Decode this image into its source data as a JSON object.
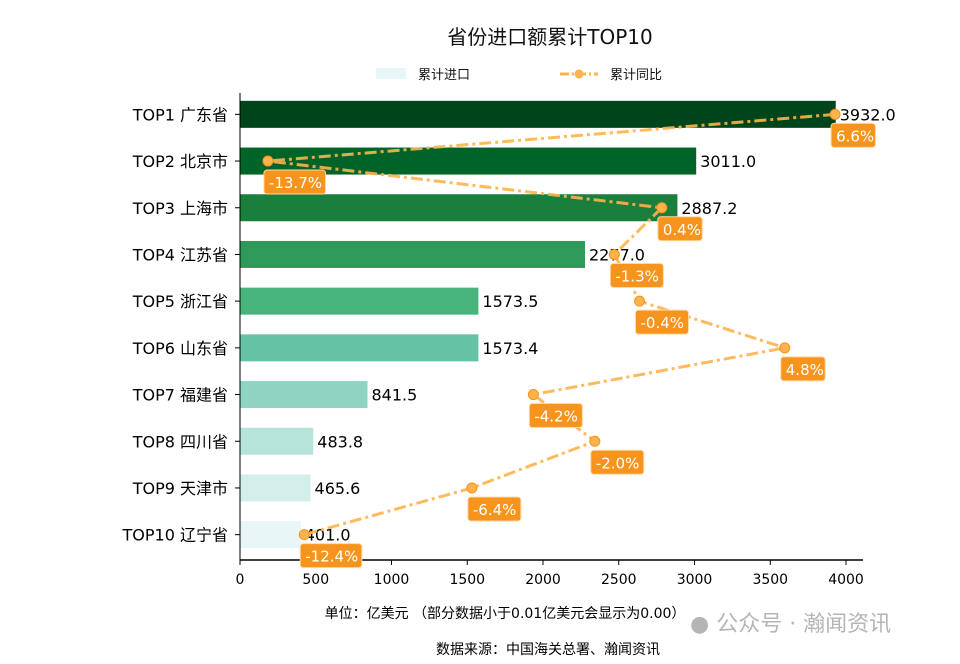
{
  "chart_data": {
    "type": "bar",
    "orientation": "horizontal",
    "title": "省份进口额累计TOP10",
    "categories": [
      "TOP1 广东省",
      "TOP2 北京市",
      "TOP3 上海市",
      "TOP4 江苏省",
      "TOP5 浙江省",
      "TOP6 山东省",
      "TOP7 福建省",
      "TOP8 四川省",
      "TOP9 天津市",
      "TOP10 辽宁省"
    ],
    "series": [
      {
        "name": "累计进口",
        "type": "bar",
        "values": [
          3932.0,
          3011.0,
          2887.2,
          2277.0,
          1573.5,
          1573.4,
          841.5,
          483.8,
          465.6,
          401.0
        ],
        "value_labels": [
          "3932.0",
          "3011.0",
          "2887.2",
          "2277.0",
          "1573.5",
          "1573.4",
          "841.5",
          "483.8",
          "465.6",
          "401.0"
        ]
      },
      {
        "name": "累计同比",
        "type": "line",
        "unit": "%",
        "values": [
          6.6,
          -13.7,
          0.4,
          -1.3,
          -0.4,
          4.8,
          -4.2,
          -2.0,
          -6.4,
          -12.4
        ],
        "value_labels": [
          "6.6%",
          "-13.7%",
          "0.4%",
          "-1.3%",
          "-0.4%",
          "4.8%",
          "-4.2%",
          "-2.0%",
          "-6.4%",
          "-12.4%"
        ]
      }
    ],
    "bar_colors": [
      "#00441b",
      "#006428",
      "#1a7f3c",
      "#2e9a5a",
      "#48b47d",
      "#66c2a4",
      "#8fd3c1",
      "#b7e4da",
      "#d4efeb",
      "#e8f6f8"
    ],
    "line_color": "#ffb34d",
    "label_box_color": "#f7941d",
    "xlim": [
      0,
      4112
    ],
    "secondary_xlim": [
      -14.7,
      7.6
    ],
    "xticks": [
      0,
      500,
      1000,
      1500,
      2000,
      2500,
      3000,
      3500,
      4000
    ],
    "xlabel": "单位：亿美元  （部分数据小于0.01亿美元会显示为0.00）",
    "source": "数据来源：中国海关总署、瀚闻资讯",
    "legend_position": "top-center",
    "grid": false
  },
  "watermark": "公众号 · 瀚闻资讯"
}
